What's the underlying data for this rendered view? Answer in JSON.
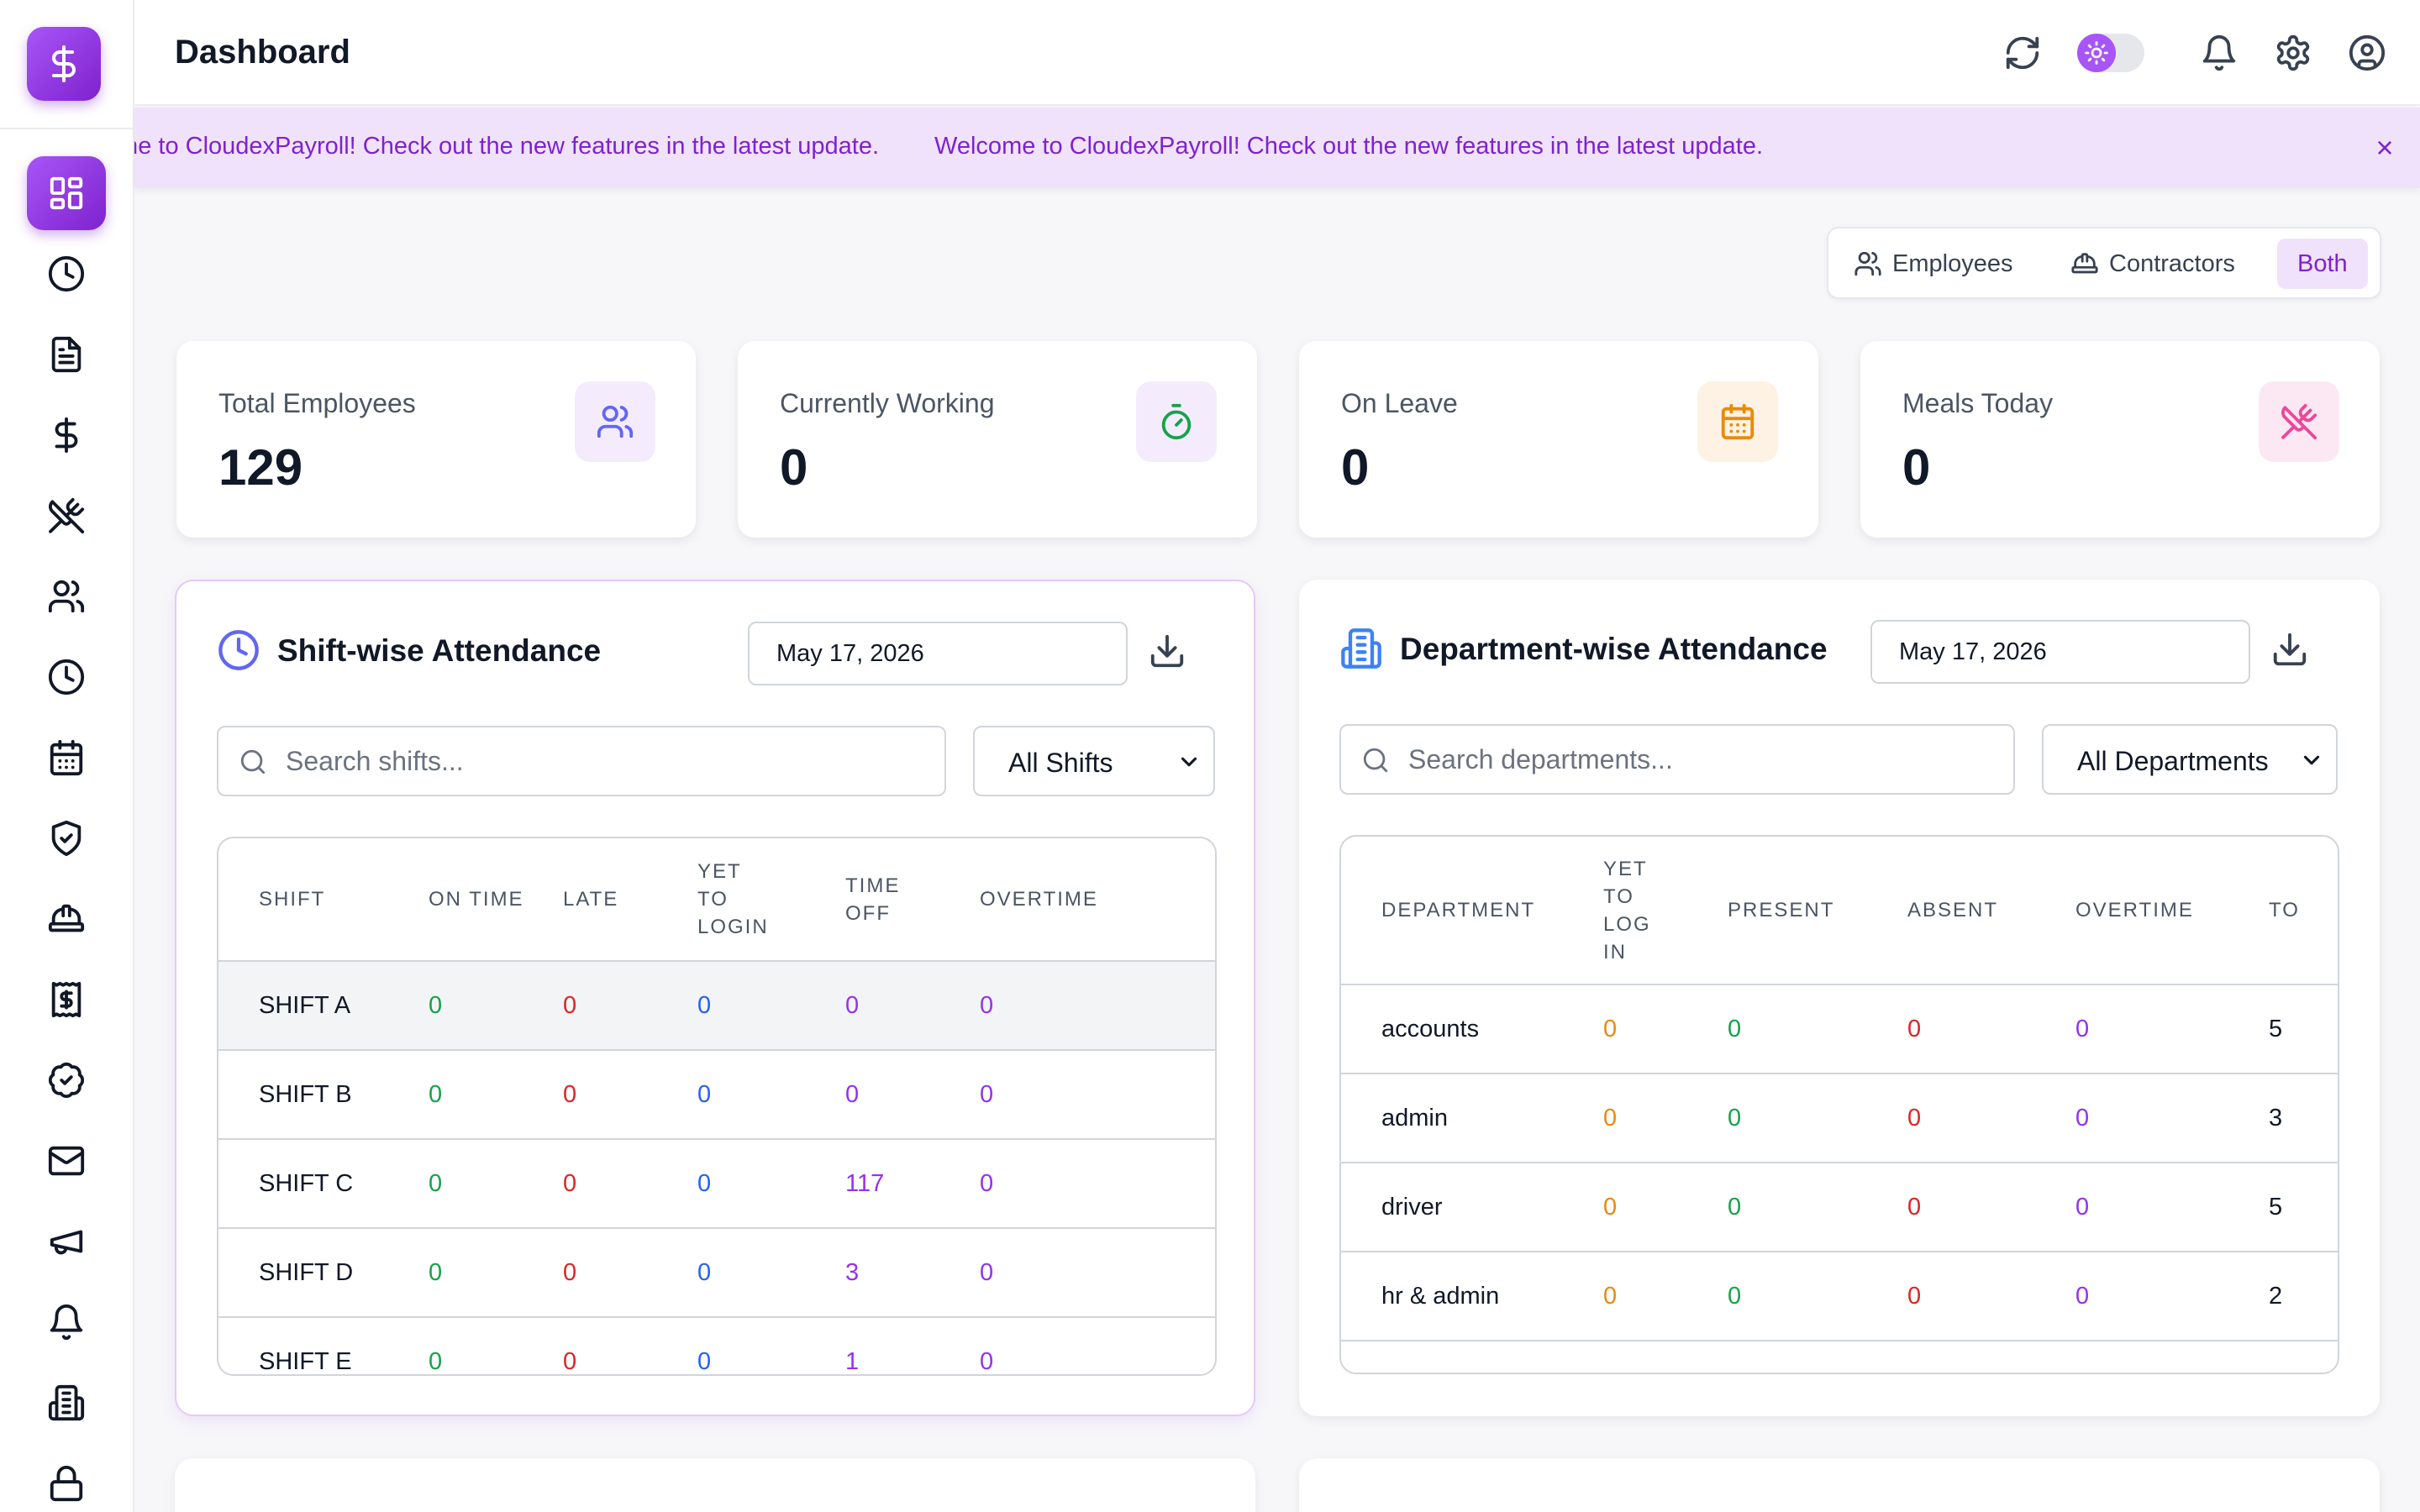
{
  "header": {
    "title": "Dashboard"
  },
  "announcement": {
    "messages": [
      "Welcome to CloudexPayroll! Check out the new features in the latest update.",
      "Welcome to CloudexPayroll! Check out the new features in the latest update."
    ],
    "close_glyph": "×"
  },
  "filters": {
    "employees": "Employees",
    "contractors": "Contractors",
    "both": "Both",
    "active": "Both"
  },
  "stats": [
    {
      "label": "Total Employees",
      "value": "129",
      "icon": "users-icon",
      "color": "#6366f1"
    },
    {
      "label": "Currently Working",
      "value": "0",
      "icon": "stopwatch-icon",
      "color": "#16a34a"
    },
    {
      "label": "On Leave",
      "value": "0",
      "icon": "calendar-icon",
      "color": "#ea8a0c"
    },
    {
      "label": "Meals Today",
      "value": "0",
      "icon": "utensils-crossed-icon",
      "color": "#ec4899"
    }
  ],
  "shift_panel": {
    "title": "Shift-wise Attendance",
    "date": "May 17, 2026",
    "search_placeholder": "Search shifts...",
    "select_value": "All Shifts",
    "columns": [
      "SHIFT",
      "ON TIME",
      "LATE",
      "YET TO LOGIN",
      "TIME OFF",
      "OVERTIME"
    ],
    "rows": [
      {
        "shift": "SHIFT A",
        "on_time": "0",
        "late": "0",
        "yet_to_login": "0",
        "time_off": "0",
        "overtime": "0"
      },
      {
        "shift": "SHIFT B",
        "on_time": "0",
        "late": "0",
        "yet_to_login": "0",
        "time_off": "0",
        "overtime": "0"
      },
      {
        "shift": "SHIFT C",
        "on_time": "0",
        "late": "0",
        "yet_to_login": "0",
        "time_off": "117",
        "overtime": "0"
      },
      {
        "shift": "SHIFT D",
        "on_time": "0",
        "late": "0",
        "yet_to_login": "0",
        "time_off": "3",
        "overtime": "0"
      },
      {
        "shift": "SHIFT E",
        "on_time": "0",
        "late": "0",
        "yet_to_login": "0",
        "time_off": "1",
        "overtime": "0"
      }
    ]
  },
  "dept_panel": {
    "title": "Department-wise Attendance",
    "date": "May 17, 2026",
    "search_placeholder": "Search departments...",
    "select_value": "All Departments",
    "columns": [
      "DEPARTMENT",
      "YET TO LOG IN",
      "PRESENT",
      "ABSENT",
      "OVERTIME",
      "TO"
    ],
    "rows": [
      {
        "department": "accounts",
        "yet_to_log_in": "0",
        "present": "0",
        "absent": "0",
        "overtime": "0",
        "total": "5"
      },
      {
        "department": "admin",
        "yet_to_log_in": "0",
        "present": "0",
        "absent": "0",
        "overtime": "0",
        "total": "3"
      },
      {
        "department": "driver",
        "yet_to_log_in": "0",
        "present": "0",
        "absent": "0",
        "overtime": "0",
        "total": "5"
      },
      {
        "department": "hr & admin",
        "yet_to_log_in": "0",
        "present": "0",
        "absent": "0",
        "overtime": "0",
        "total": "2"
      }
    ]
  },
  "sidebar": {
    "items": [
      {
        "icon": "dashboard-grid-icon",
        "active": true
      },
      {
        "icon": "clock-icon"
      },
      {
        "icon": "document-icon"
      },
      {
        "icon": "dollar-icon"
      },
      {
        "icon": "utensils-crossed-icon"
      },
      {
        "icon": "users-icon"
      },
      {
        "icon": "clock-icon"
      },
      {
        "icon": "calendar-icon"
      },
      {
        "icon": "shield-check-icon"
      },
      {
        "icon": "hard-hat-icon"
      },
      {
        "icon": "payslip-icon"
      },
      {
        "icon": "check-badge-icon"
      },
      {
        "icon": "mail-icon"
      },
      {
        "icon": "megaphone-icon"
      },
      {
        "icon": "bell-icon"
      },
      {
        "icon": "building-icon"
      },
      {
        "icon": "lock-icon"
      }
    ]
  },
  "colors": {
    "accent": "#9333ea",
    "on_time": "#16a34a",
    "late": "#dc2626",
    "yet_to_login": "#2563eb",
    "time_off": "#9333ea",
    "overtime": "#9333ea",
    "yet_to_log_in_dept": "#ea8a0c"
  }
}
